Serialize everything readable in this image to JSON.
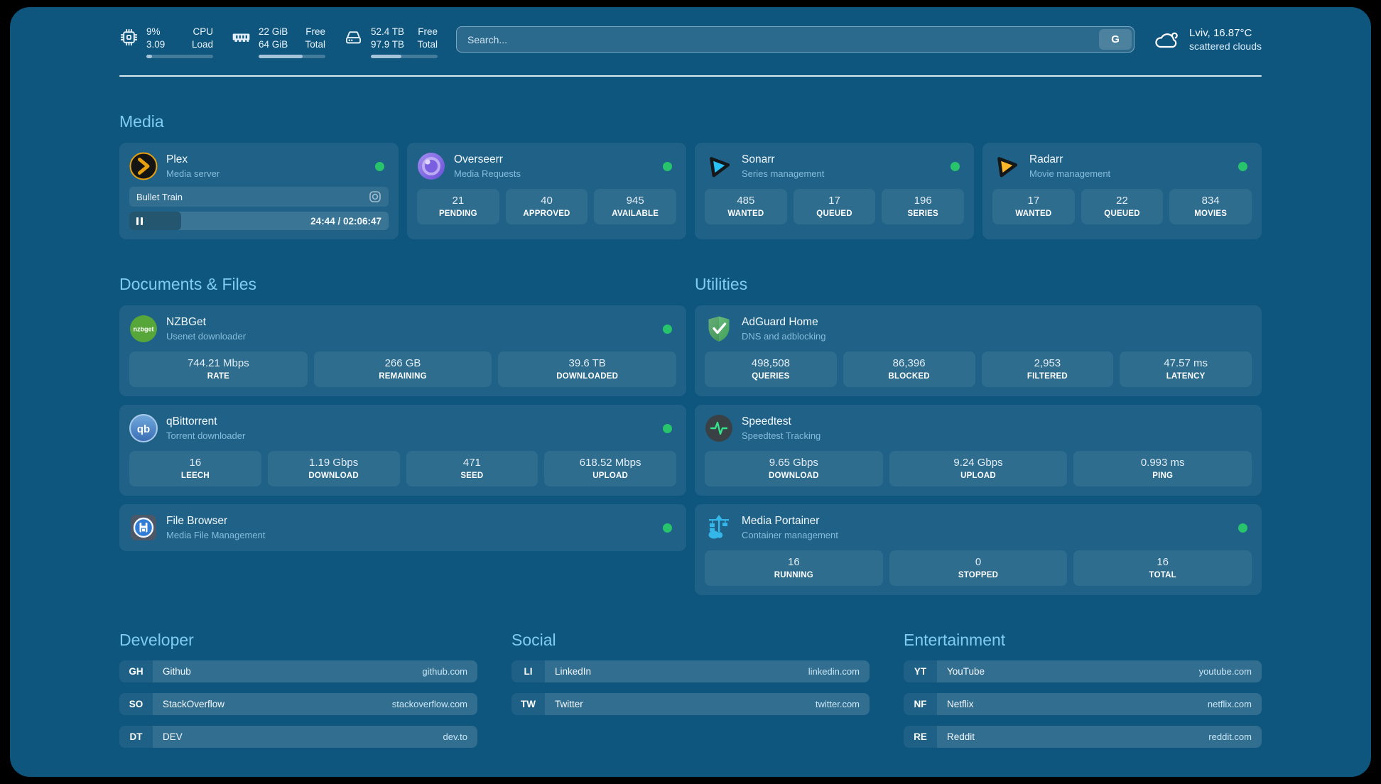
{
  "colors": {
    "page_bg": "#0f567e",
    "accent_heading": "#7ecdf0",
    "status_online": "#27c46c",
    "plex_orange": "#e7a10e",
    "sonarr_cyan": "#29c2f7",
    "radarr_orange": "#ffb627",
    "adguard_green": "#53ab63",
    "portainer_blue": "#35b6e8"
  },
  "header": {
    "cpu": {
      "icon": "cpu-icon",
      "value1": "9%",
      "value2": "3.09",
      "label1": "CPU",
      "label2": "Load",
      "percent": 9
    },
    "memory": {
      "icon": "ram-icon",
      "value1": "22 GiB",
      "value2": "64 GiB",
      "label1": "Free",
      "label2": "Total",
      "percent": 66
    },
    "disk": {
      "icon": "disk-icon",
      "value1": "52.4 TB",
      "value2": "97.9 TB",
      "label1": "Free",
      "label2": "Total",
      "percent": 46
    },
    "search": {
      "placeholder": "Search...",
      "button": "G"
    },
    "weather": {
      "icon": "cloud-icon",
      "location": "Lviv, 16.87°C",
      "condition": "scattered clouds"
    }
  },
  "media": {
    "title": "Media",
    "apps": [
      {
        "icon": "plex-icon",
        "name": "Plex",
        "subtitle": "Media server",
        "online": true,
        "now_playing": {
          "title": "Bullet Train",
          "time": "24:44 / 02:06:47",
          "progress": 20
        }
      },
      {
        "icon": "overseerr-icon",
        "name": "Overseerr",
        "subtitle": "Media Requests",
        "online": true,
        "stats": [
          {
            "value": "21",
            "label": "PENDING"
          },
          {
            "value": "40",
            "label": "APPROVED"
          },
          {
            "value": "945",
            "label": "AVAILABLE"
          }
        ]
      },
      {
        "icon": "sonarr-icon",
        "name": "Sonarr",
        "subtitle": "Series management",
        "online": true,
        "stats": [
          {
            "value": "485",
            "label": "WANTED"
          },
          {
            "value": "17",
            "label": "QUEUED"
          },
          {
            "value": "196",
            "label": "SERIES"
          }
        ]
      },
      {
        "icon": "radarr-icon",
        "name": "Radarr",
        "subtitle": "Movie management",
        "online": true,
        "stats": [
          {
            "value": "17",
            "label": "WANTED"
          },
          {
            "value": "22",
            "label": "QUEUED"
          },
          {
            "value": "834",
            "label": "MOVIES"
          }
        ]
      }
    ]
  },
  "documents": {
    "title": "Documents & Files",
    "apps": [
      {
        "icon": "nzbget-icon",
        "name": "NZBGet",
        "subtitle": "Usenet downloader",
        "online": true,
        "stats": [
          {
            "value": "744.21 Mbps",
            "label": "RATE"
          },
          {
            "value": "266 GB",
            "label": "REMAINING"
          },
          {
            "value": "39.6 TB",
            "label": "DOWNLOADED"
          }
        ]
      },
      {
        "icon": "qbittorrent-icon",
        "name": "qBittorrent",
        "subtitle": "Torrent downloader",
        "online": true,
        "stats": [
          {
            "value": "16",
            "label": "LEECH"
          },
          {
            "value": "1.19 Gbps",
            "label": "DOWNLOAD"
          },
          {
            "value": "471",
            "label": "SEED"
          },
          {
            "value": "618.52 Mbps",
            "label": "UPLOAD"
          }
        ]
      },
      {
        "icon": "filebrowser-icon",
        "name": "File Browser",
        "subtitle": "Media File Management",
        "online": true
      }
    ]
  },
  "utilities": {
    "title": "Utilities",
    "apps": [
      {
        "icon": "adguard-icon",
        "name": "AdGuard Home",
        "subtitle": "DNS and adblocking",
        "online": false,
        "stats": [
          {
            "value": "498,508",
            "label": "QUERIES"
          },
          {
            "value": "86,396",
            "label": "BLOCKED"
          },
          {
            "value": "2,953",
            "label": "FILTERED"
          },
          {
            "value": "47.57 ms",
            "label": "LATENCY"
          }
        ]
      },
      {
        "icon": "speedtest-icon",
        "name": "Speedtest",
        "subtitle": "Speedtest Tracking",
        "online": false,
        "stats": [
          {
            "value": "9.65 Gbps",
            "label": "DOWNLOAD"
          },
          {
            "value": "9.24 Gbps",
            "label": "UPLOAD"
          },
          {
            "value": "0.993 ms",
            "label": "PING"
          }
        ]
      },
      {
        "icon": "portainer-icon",
        "name": "Media Portainer",
        "subtitle": "Container management",
        "online": true,
        "stats": [
          {
            "value": "16",
            "label": "RUNNING"
          },
          {
            "value": "0",
            "label": "STOPPED"
          },
          {
            "value": "16",
            "label": "TOTAL"
          }
        ]
      }
    ]
  },
  "links": {
    "developer": {
      "title": "Developer",
      "items": [
        {
          "abbr": "GH",
          "name": "Github",
          "domain": "github.com"
        },
        {
          "abbr": "SO",
          "name": "StackOverflow",
          "domain": "stackoverflow.com"
        },
        {
          "abbr": "DT",
          "name": "DEV",
          "domain": "dev.to"
        }
      ]
    },
    "social": {
      "title": "Social",
      "items": [
        {
          "abbr": "LI",
          "name": "LinkedIn",
          "domain": "linkedin.com"
        },
        {
          "abbr": "TW",
          "name": "Twitter",
          "domain": "twitter.com"
        }
      ]
    },
    "entertainment": {
      "title": "Entertainment",
      "items": [
        {
          "abbr": "YT",
          "name": "YouTube",
          "domain": "youtube.com"
        },
        {
          "abbr": "NF",
          "name": "Netflix",
          "domain": "netflix.com"
        },
        {
          "abbr": "RE",
          "name": "Reddit",
          "domain": "reddit.com"
        }
      ]
    }
  }
}
